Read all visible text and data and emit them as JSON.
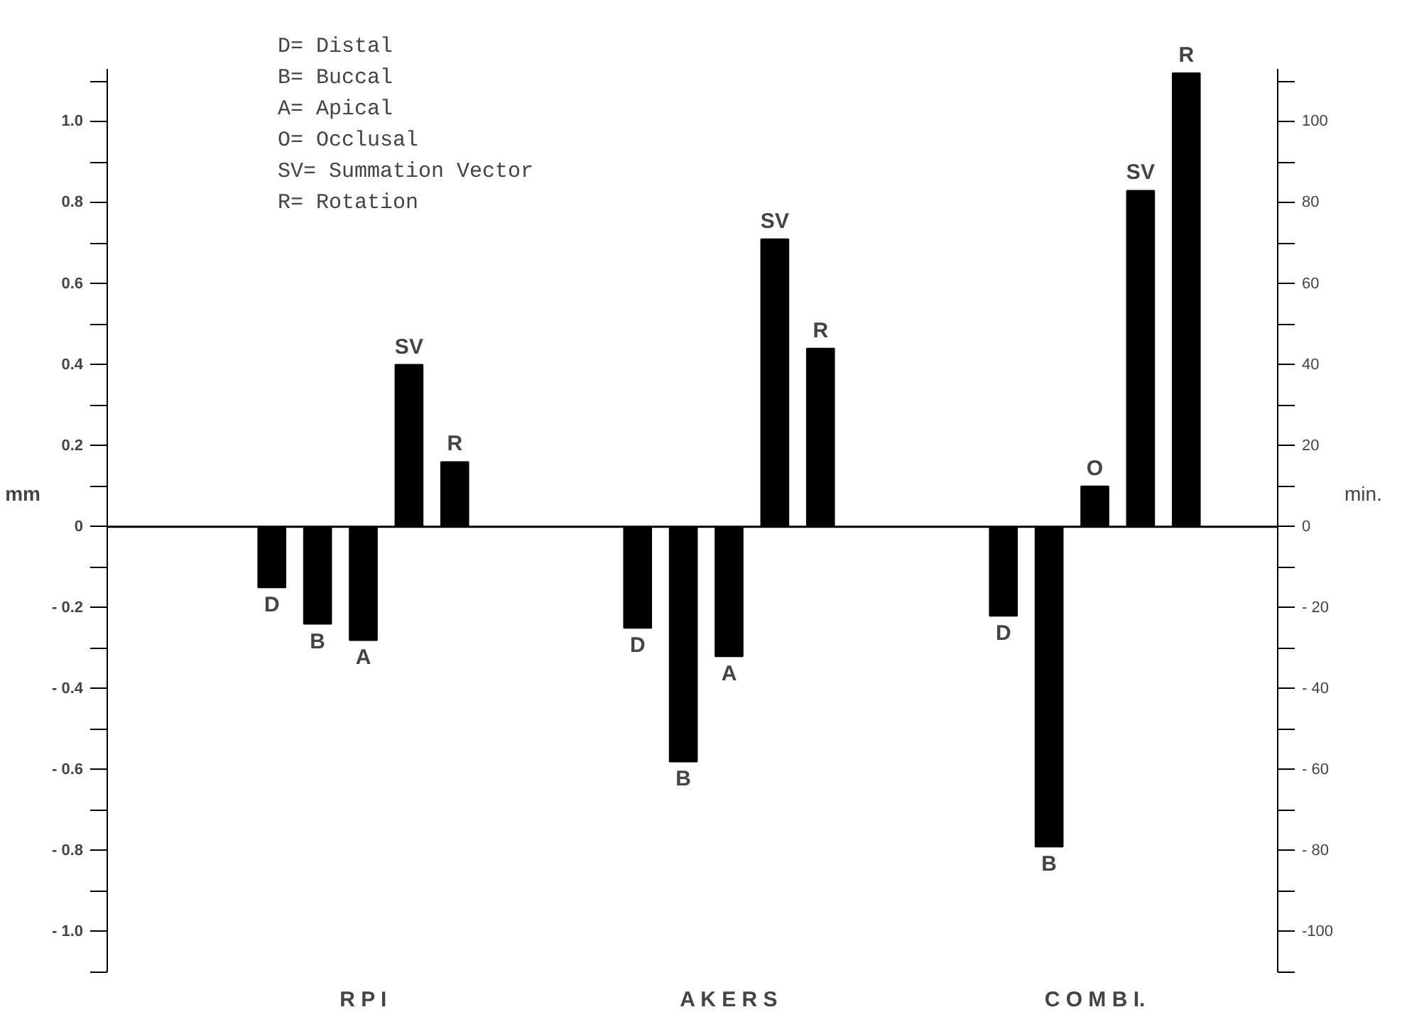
{
  "chart_data": {
    "type": "bar",
    "ylabel": "mm",
    "y2label": "min.",
    "categories": [
      "R P I",
      "A K E R S",
      "C O M B I."
    ],
    "series": [
      {
        "name": "D",
        "color": "#000000",
        "values": [
          -0.15,
          -0.25,
          -0.22
        ]
      },
      {
        "name": "B",
        "color": "#000000",
        "values": [
          -0.24,
          -0.58,
          -0.79
        ]
      },
      {
        "name": "A",
        "color": "#000000",
        "values": [
          -0.28,
          -0.32,
          null
        ]
      },
      {
        "name": "O",
        "color": "#000000",
        "values": [
          null,
          null,
          0.1
        ]
      },
      {
        "name": "SV",
        "color": "#000000",
        "values": [
          0.4,
          0.71,
          0.83
        ]
      },
      {
        "name": "R",
        "color": "#000000",
        "axis": "y2",
        "values": [
          16,
          44,
          112
        ]
      }
    ],
    "ylim": [
      -1.1,
      1.13
    ],
    "yticks": [
      {
        "value": -1.1,
        "label": null
      },
      {
        "value": -1.0,
        "label": "- 1.0"
      },
      {
        "value": -0.9,
        "label": null
      },
      {
        "value": -0.8,
        "label": "- 0.8"
      },
      {
        "value": -0.7,
        "label": null
      },
      {
        "value": -0.6,
        "label": "- 0.6"
      },
      {
        "value": -0.5,
        "label": null
      },
      {
        "value": -0.4,
        "label": "- 0.4"
      },
      {
        "value": -0.3,
        "label": null
      },
      {
        "value": -0.2,
        "label": "- 0.2"
      },
      {
        "value": -0.1,
        "label": null
      },
      0,
      {
        "value": 0.1,
        "label": null
      },
      {
        "value": 0.2,
        "label": "0.2"
      },
      {
        "value": 0.3,
        "label": null
      },
      {
        "value": 0.4,
        "label": "0.4"
      },
      {
        "value": 0.5,
        "label": null
      },
      {
        "value": 0.6,
        "label": "0.6"
      },
      {
        "value": 0.7,
        "label": null
      },
      {
        "value": 0.8,
        "label": "0.8"
      },
      {
        "value": 0.9,
        "label": null
      },
      {
        "value": 1.0,
        "label": "1.0"
      },
      {
        "value": 1.1,
        "label": null
      }
    ],
    "y2lim": [
      -110,
      113
    ],
    "y2ticks": [
      {
        "value": -110,
        "label": null
      },
      {
        "value": -100,
        "label": "-100"
      },
      {
        "value": -90,
        "label": null
      },
      {
        "value": -80,
        "label": "- 80"
      },
      {
        "value": -70,
        "label": null
      },
      {
        "value": -60,
        "label": "- 60"
      },
      {
        "value": -50,
        "label": null
      },
      {
        "value": -40,
        "label": "- 40"
      },
      {
        "value": -30,
        "label": null
      },
      {
        "value": -20,
        "label": "- 20"
      },
      {
        "value": -10,
        "label": null
      },
      {
        "value": 0,
        "label": "0"
      },
      {
        "value": 10,
        "label": null
      },
      {
        "value": 20,
        "label": "20"
      },
      {
        "value": 30,
        "label": null
      },
      {
        "value": 40,
        "label": "40"
      },
      {
        "value": 50,
        "label": null
      },
      {
        "value": 60,
        "label": "60"
      },
      {
        "value": 70,
        "label": null
      },
      {
        "value": 80,
        "label": "80"
      },
      {
        "value": 90,
        "label": null
      },
      {
        "value": 100,
        "label": "100"
      },
      {
        "value": 110,
        "label": null
      }
    ],
    "ref_lines": [
      {
        "axis": "y",
        "value": 0,
        "color": "#000000"
      }
    ],
    "annotations": [
      "D= Distal",
      "B= Buccal",
      "A= Apical",
      "O= Occlusal",
      "SV= Summation Vector",
      "R= Rotation"
    ],
    "grid": false
  }
}
